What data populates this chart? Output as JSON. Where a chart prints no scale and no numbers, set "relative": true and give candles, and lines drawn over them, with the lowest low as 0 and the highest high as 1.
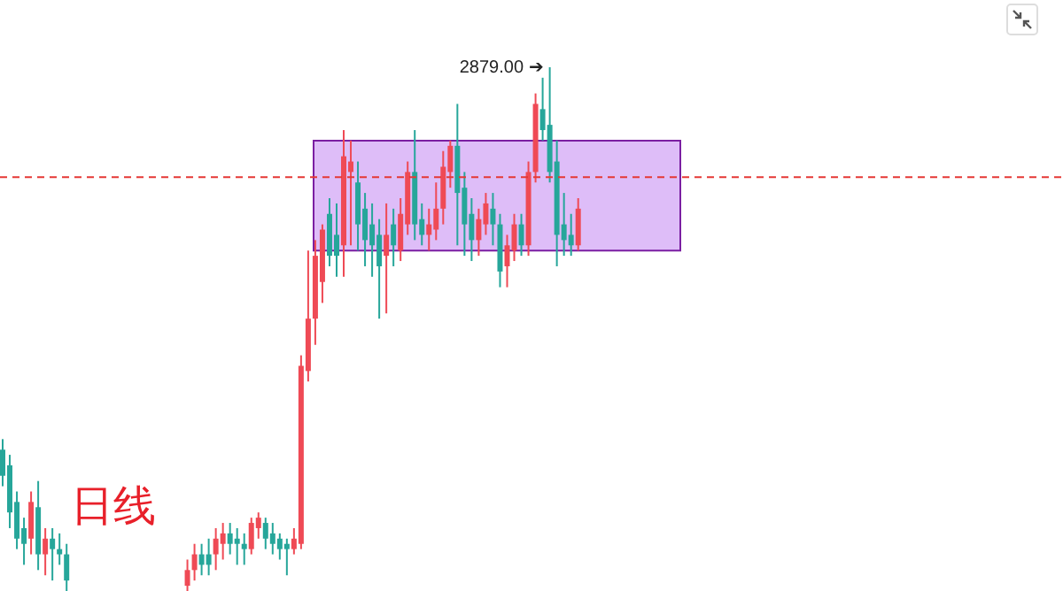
{
  "chart_data": {
    "type": "candlestick",
    "relative": true,
    "categories": [
      null,
      null,
      null,
      null,
      null,
      null,
      null,
      null,
      null,
      null,
      null,
      null,
      null,
      null,
      null,
      null,
      null,
      null,
      null,
      null,
      null,
      null,
      null,
      null,
      null,
      null,
      null,
      null,
      null,
      null,
      null,
      null,
      null,
      null,
      null,
      null,
      null,
      null,
      null,
      null,
      null,
      null,
      null,
      null,
      null,
      null,
      null,
      null,
      null,
      null,
      null,
      null,
      null,
      null,
      null,
      null,
      null,
      null,
      null,
      null,
      null,
      null,
      null,
      null,
      null,
      null,
      null,
      null,
      null,
      null,
      null,
      null,
      null,
      null,
      null,
      null,
      null,
      null,
      null,
      null,
      null,
      null,
      null,
      null,
      null,
      null,
      null,
      null,
      null,
      null,
      null,
      null,
      null,
      null,
      null,
      null
    ],
    "ohlc": [
      [
        0.27,
        0.29,
        0.2,
        0.22
      ],
      [
        0.24,
        0.26,
        0.12,
        0.15
      ],
      [
        0.17,
        0.19,
        0.08,
        0.1
      ],
      [
        0.12,
        0.14,
        0.05,
        0.09
      ],
      [
        0.1,
        0.19,
        0.07,
        0.17
      ],
      [
        0.16,
        0.21,
        0.04,
        0.07
      ],
      [
        0.07,
        0.12,
        0.03,
        0.1
      ],
      [
        0.1,
        0.12,
        0.02,
        0.08
      ],
      [
        0.08,
        0.11,
        0.05,
        0.07
      ],
      [
        0.07,
        0.09,
        0,
        0.02
      ],
      null,
      null,
      null,
      null,
      null,
      null,
      null,
      null,
      null,
      null,
      null,
      null,
      null,
      null,
      null,
      null,
      [
        0.01,
        0.06,
        0,
        0.04
      ],
      [
        0.04,
        0.09,
        0.02,
        0.07
      ],
      [
        0.07,
        0.09,
        0.03,
        0.05
      ],
      [
        0.07,
        0.1,
        0.03,
        0.05
      ],
      [
        0.07,
        0.12,
        0.04,
        0.1
      ],
      [
        0.09,
        0.13,
        0.06,
        0.11
      ],
      [
        0.11,
        0.13,
        0.07,
        0.09
      ],
      [
        0.1,
        0.12,
        0.05,
        0.09
      ],
      [
        0.09,
        0.11,
        0.05,
        0.08
      ],
      [
        0.08,
        0.14,
        0.07,
        0.13
      ],
      [
        0.12,
        0.15,
        0.1,
        0.14
      ],
      [
        0.13,
        0.14,
        0.08,
        0.1
      ],
      [
        0.11,
        0.13,
        0.07,
        0.09
      ],
      [
        0.1,
        0.11,
        0.06,
        0.08
      ],
      [
        0.09,
        0.1,
        0.03,
        0.08
      ],
      [
        0.08,
        0.12,
        0.07,
        0.1
      ],
      [
        0.09,
        0.45,
        0.08,
        0.43
      ],
      [
        0.42,
        0.65,
        0.4,
        0.52
      ],
      [
        0.52,
        0.67,
        0.47,
        0.64
      ],
      [
        0.59,
        0.7,
        0.55,
        0.69
      ],
      [
        0.72,
        0.75,
        0.62,
        0.64
      ],
      [
        0.68,
        0.74,
        0.6,
        0.64
      ],
      [
        0.66,
        0.88,
        0.6,
        0.83
      ],
      [
        0.8,
        0.86,
        0.66,
        0.82
      ],
      [
        0.78,
        0.82,
        0.65,
        0.7
      ],
      [
        0.73,
        0.76,
        0.62,
        0.67
      ],
      [
        0.7,
        0.74,
        0.6,
        0.66
      ],
      [
        0.68,
        0.71,
        0.52,
        0.62
      ],
      [
        0.64,
        0.74,
        0.53,
        0.68
      ],
      [
        0.7,
        0.73,
        0.62,
        0.66
      ],
      [
        0.65,
        0.75,
        0.63,
        0.72
      ],
      [
        0.7,
        0.82,
        0.68,
        0.8
      ],
      [
        0.8,
        0.88,
        0.67,
        0.7
      ],
      [
        0.71,
        0.74,
        0.66,
        0.68
      ],
      [
        0.68,
        0.73,
        0.65,
        0.7
      ],
      [
        0.69,
        0.78,
        0.67,
        0.73
      ],
      [
        0.73,
        0.84,
        0.7,
        0.81
      ],
      [
        0.8,
        0.86,
        0.77,
        0.85
      ],
      [
        0.85,
        0.93,
        0.66,
        0.76
      ],
      [
        0.77,
        0.8,
        0.64,
        0.7
      ],
      [
        0.72,
        0.75,
        0.63,
        0.67
      ],
      [
        0.67,
        0.73,
        0.64,
        0.71
      ],
      [
        0.7,
        0.76,
        0.68,
        0.74
      ],
      [
        0.73,
        0.76,
        0.66,
        0.7
      ],
      [
        0.7,
        0.72,
        0.58,
        0.61
      ],
      [
        0.62,
        0.68,
        0.58,
        0.66
      ],
      [
        0.65,
        0.72,
        0.63,
        0.7
      ],
      [
        0.7,
        0.72,
        0.64,
        0.66
      ],
      [
        0.66,
        0.82,
        0.64,
        0.8
      ],
      [
        0.8,
        0.95,
        0.78,
        0.93
      ],
      [
        0.92,
        0.98,
        0.86,
        0.88
      ],
      [
        0.89,
        1,
        0.78,
        0.8
      ],
      [
        0.82,
        0.86,
        0.62,
        0.68
      ],
      [
        0.7,
        0.76,
        0.64,
        0.67
      ],
      [
        0.68,
        0.72,
        0.64,
        0.66
      ],
      [
        0.66,
        0.75,
        0.65,
        0.73
      ],
      null,
      null,
      null,
      null,
      null,
      null,
      null,
      null,
      null,
      null,
      null,
      null,
      null,
      null
    ],
    "colors": [
      "#26a69a",
      "#26a69a",
      "#26a69a",
      "#26a69a",
      "#ef4a55",
      "#26a69a",
      "#ef4a55",
      "#26a69a",
      "#26a69a",
      "#26a69a",
      null,
      null,
      null,
      null,
      null,
      null,
      null,
      null,
      null,
      null,
      null,
      null,
      null,
      null,
      null,
      null,
      "#ef4a55",
      "#ef4a55",
      "#26a69a",
      "#26a69a",
      "#ef4a55",
      "#ef4a55",
      "#26a69a",
      "#26a69a",
      "#26a69a",
      "#ef4a55",
      "#ef4a55",
      "#26a69a",
      "#26a69a",
      "#26a69a",
      "#26a69a",
      "#ef4a55",
      "#ef4a55",
      "#ef4a55",
      "#ef4a55",
      "#ef4a55",
      "#26a69a",
      "#26a69a",
      "#ef4a55",
      "#ef4a55",
      "#26a69a",
      "#26a69a",
      "#26a69a",
      "#26a69a",
      "#ef4a55",
      "#26a69a",
      "#ef4a55",
      "#ef4a55",
      "#26a69a",
      "#26a69a",
      "#ef4a55",
      "#ef4a55",
      "#ef4a55",
      "#ef4a55",
      "#26a69a",
      "#26a69a",
      "#26a69a",
      "#ef4a55",
      "#ef4a55",
      "#26a69a",
      "#26a69a",
      "#ef4a55",
      "#ef4a55",
      "#26a69a",
      "#ef4a55",
      "#ef4a55",
      "#26a69a",
      "#26a69a",
      "#26a69a",
      "#26a69a",
      "#26a69a",
      "#ef4a55",
      null,
      null,
      null,
      null,
      null,
      null,
      null,
      null,
      null,
      null,
      null,
      null,
      null,
      null
    ],
    "bands": [
      {
        "axis": "y",
        "from": 0.65,
        "to": 0.86,
        "color": "#b56cf0"
      }
    ],
    "ref_lines": [
      {
        "axis": "y",
        "value": 0.79,
        "color": "#e53935",
        "line_style": "dashed"
      }
    ],
    "annotations": [
      "2879.00 ➔",
      "日线"
    ]
  }
}
